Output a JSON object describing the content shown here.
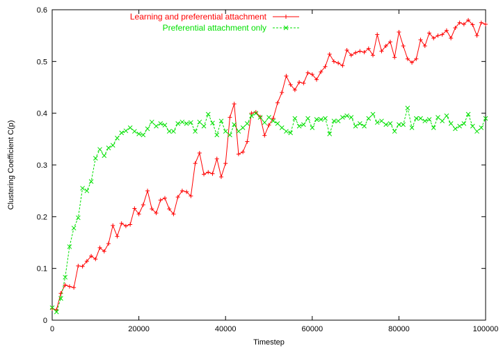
{
  "chart_data": {
    "type": "line",
    "title": "",
    "xlabel": "Timestep",
    "ylabel": "Clustering Coefficient C(p)",
    "xlim": [
      0,
      100000
    ],
    "ylim": [
      0,
      0.6
    ],
    "xticks": [
      0,
      20000,
      40000,
      60000,
      80000,
      100000
    ],
    "xtick_labels": [
      "0",
      "20000",
      "40000",
      "60000",
      "80000",
      "100000"
    ],
    "yticks": [
      0,
      0.1,
      0.2,
      0.3,
      0.4,
      0.5,
      0.6
    ],
    "ytick_labels": [
      "0",
      "0.1",
      "0.2",
      "0.3",
      "0.4",
      "0.5",
      "0.6"
    ],
    "grid": false,
    "legend_position": "top-left",
    "series": [
      {
        "name": "Learning and preferential attachment",
        "color": "#ff0000",
        "marker": "plus",
        "line_style": "solid",
        "x": [
          0,
          1000,
          2000,
          3000,
          4000,
          5000,
          6000,
          7000,
          8000,
          9000,
          10000,
          11000,
          12000,
          13000,
          14000,
          15000,
          16000,
          17000,
          18000,
          19000,
          20000,
          21000,
          22000,
          23000,
          24000,
          25000,
          26000,
          27000,
          28000,
          29000,
          30000,
          31000,
          32000,
          33000,
          34000,
          35000,
          36000,
          37000,
          38000,
          39000,
          40000,
          41000,
          42000,
          43000,
          44000,
          45000,
          46000,
          47000,
          48000,
          49000,
          50000,
          51000,
          52000,
          53000,
          54000,
          55000,
          56000,
          57000,
          58000,
          59000,
          60000,
          61000,
          62000,
          63000,
          64000,
          65000,
          66000,
          67000,
          68000,
          69000,
          70000,
          71000,
          72000,
          73000,
          74000,
          75000,
          76000,
          77000,
          78000,
          79000,
          80000,
          81000,
          82000,
          83000,
          84000,
          85000,
          86000,
          87000,
          88000,
          89000,
          90000,
          91000,
          92000,
          93000,
          94000,
          95000,
          96000,
          97000,
          98000,
          99000,
          100000
        ],
        "y": [
          0.022,
          0.02,
          0.052,
          0.068,
          0.065,
          0.063,
          0.105,
          0.104,
          0.114,
          0.124,
          0.118,
          0.14,
          0.133,
          0.148,
          0.183,
          0.162,
          0.187,
          0.182,
          0.185,
          0.216,
          0.205,
          0.223,
          0.25,
          0.215,
          0.207,
          0.232,
          0.236,
          0.215,
          0.205,
          0.238,
          0.25,
          0.248,
          0.24,
          0.303,
          0.323,
          0.282,
          0.286,
          0.283,
          0.312,
          0.277,
          0.303,
          0.392,
          0.418,
          0.321,
          0.325,
          0.345,
          0.4,
          0.402,
          0.393,
          0.357,
          0.377,
          0.39,
          0.42,
          0.44,
          0.472,
          0.455,
          0.445,
          0.46,
          0.458,
          0.478,
          0.475,
          0.465,
          0.48,
          0.49,
          0.514,
          0.5,
          0.497,
          0.492,
          0.522,
          0.512,
          0.517,
          0.52,
          0.518,
          0.525,
          0.512,
          0.552,
          0.52,
          0.53,
          0.538,
          0.508,
          0.557,
          0.53,
          0.505,
          0.498,
          0.505,
          0.542,
          0.53,
          0.555,
          0.545,
          0.55,
          0.552,
          0.56,
          0.545,
          0.565,
          0.575,
          0.572,
          0.58,
          0.571,
          0.55,
          0.575,
          0.572
        ]
      },
      {
        "name": "Preferential attachment only",
        "color": "#00e000",
        "marker": "cross",
        "line_style": "dashed",
        "x": [
          0,
          1000,
          2000,
          3000,
          4000,
          5000,
          6000,
          7000,
          8000,
          9000,
          10000,
          11000,
          12000,
          13000,
          14000,
          15000,
          16000,
          17000,
          18000,
          19000,
          20000,
          21000,
          22000,
          23000,
          24000,
          25000,
          26000,
          27000,
          28000,
          29000,
          30000,
          31000,
          32000,
          33000,
          34000,
          35000,
          36000,
          37000,
          38000,
          39000,
          40000,
          41000,
          42000,
          43000,
          44000,
          45000,
          46000,
          47000,
          48000,
          49000,
          50000,
          51000,
          52000,
          53000,
          54000,
          55000,
          56000,
          57000,
          58000,
          59000,
          60000,
          61000,
          62000,
          63000,
          64000,
          65000,
          66000,
          67000,
          68000,
          69000,
          70000,
          71000,
          72000,
          73000,
          74000,
          75000,
          76000,
          77000,
          78000,
          79000,
          80000,
          81000,
          82000,
          83000,
          84000,
          85000,
          86000,
          87000,
          88000,
          89000,
          90000,
          91000,
          92000,
          93000,
          94000,
          95000,
          96000,
          97000,
          98000,
          99000,
          100000
        ],
        "y": [
          0.024,
          0.016,
          0.042,
          0.083,
          0.142,
          0.178,
          0.198,
          0.255,
          0.25,
          0.268,
          0.313,
          0.33,
          0.318,
          0.333,
          0.338,
          0.352,
          0.362,
          0.366,
          0.372,
          0.365,
          0.36,
          0.358,
          0.37,
          0.383,
          0.375,
          0.38,
          0.377,
          0.365,
          0.365,
          0.38,
          0.383,
          0.38,
          0.382,
          0.365,
          0.383,
          0.375,
          0.398,
          0.381,
          0.358,
          0.385,
          0.365,
          0.358,
          0.378,
          0.365,
          0.372,
          0.38,
          0.395,
          0.4,
          0.392,
          0.382,
          0.392,
          0.385,
          0.38,
          0.372,
          0.365,
          0.362,
          0.39,
          0.375,
          0.378,
          0.39,
          0.372,
          0.388,
          0.388,
          0.39,
          0.36,
          0.385,
          0.385,
          0.392,
          0.395,
          0.392,
          0.375,
          0.38,
          0.375,
          0.39,
          0.398,
          0.382,
          0.385,
          0.378,
          0.38,
          0.365,
          0.378,
          0.378,
          0.41,
          0.372,
          0.39,
          0.39,
          0.385,
          0.388,
          0.372,
          0.392,
          0.385,
          0.395,
          0.38,
          0.37,
          0.375,
          0.38,
          0.398,
          0.375,
          0.365,
          0.372,
          0.39
        ]
      }
    ]
  }
}
